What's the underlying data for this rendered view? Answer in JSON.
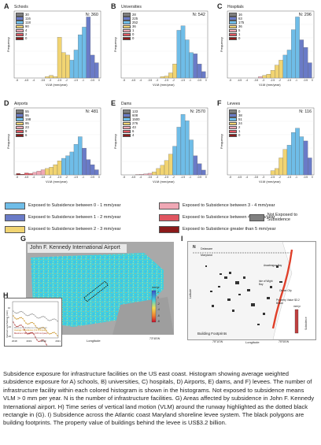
{
  "colors": {
    "c1": "#6a7bc7",
    "c2": "#6fbde8",
    "c3": "#f1d472",
    "c4": "#f0a8b5",
    "c5": "#e05560",
    "c6": "#8b1a1a",
    "c0": "#808080"
  },
  "panels": [
    {
      "letter": "A",
      "title": "Schools",
      "n": "N: 360",
      "counts": [
        "30",
        "116",
        "118",
        "90",
        "4",
        "2",
        "0"
      ]
    },
    {
      "letter": "B",
      "title": "Universities",
      "n": "N: 542",
      "counts": [
        "28",
        "225",
        "252",
        "36",
        "1",
        "0",
        "0"
      ]
    },
    {
      "letter": "C",
      "title": "Hospitals",
      "n": "N: 296",
      "counts": [
        "16",
        "63",
        "175",
        "36",
        "5",
        "1",
        "0"
      ]
    },
    {
      "letter": "D",
      "title": "Airports",
      "n": "N: 481",
      "counts": [
        "55",
        "95",
        "198",
        "95",
        "23",
        "9",
        "6"
      ]
    },
    {
      "letter": "E",
      "title": "Dams",
      "n": "N: 2570",
      "counts": [
        "133",
        "608",
        "1500",
        "276",
        "43",
        "6",
        "4"
      ]
    },
    {
      "letter": "F",
      "title": "Levees",
      "n": "N: 116",
      "counts": [
        "0",
        "38",
        "51",
        "24",
        "2",
        "1",
        "0"
      ]
    }
  ],
  "axes": {
    "ylabel": "Frequency",
    "xlabel": "VLM (mm/year)",
    "xticks": [
      "-5",
      "-4.5",
      "-4",
      "-3.5",
      "-3",
      "-2.5",
      "-2",
      "-1.5",
      "-1",
      "-0.5",
      "0"
    ]
  },
  "chart_data": [
    {
      "type": "bar",
      "panel": "A",
      "title": "Schools",
      "bins_center": [
        -3.25,
        -3.0,
        -2.75,
        -2.5,
        -2.25,
        -2.0,
        -1.75,
        -1.5,
        -1.25,
        -1.0,
        -0.75,
        -0.5,
        -0.25
      ],
      "values": [
        1,
        2,
        1,
        32,
        20,
        18,
        14,
        22,
        34,
        40,
        48,
        18,
        12
      ],
      "class": [
        3,
        3,
        3,
        3,
        3,
        3,
        2,
        2,
        2,
        2,
        1,
        1,
        1
      ],
      "ylim": [
        0,
        50
      ]
    },
    {
      "type": "bar",
      "panel": "B",
      "title": "Universities",
      "bins_center": [
        -2.75,
        -2.5,
        -2.25,
        -2.0,
        -1.75,
        -1.5,
        -1.25,
        -1.0,
        -0.75,
        -0.5,
        -0.25
      ],
      "values": [
        2,
        3,
        8,
        22,
        75,
        82,
        60,
        40,
        38,
        22,
        10
      ],
      "class": [
        3,
        3,
        3,
        3,
        2,
        2,
        2,
        2,
        1,
        1,
        1
      ],
      "ylim": [
        0,
        100
      ]
    },
    {
      "type": "bar",
      "panel": "C",
      "title": "Hospitals",
      "bins_center": [
        -3.25,
        -3.0,
        -2.75,
        -2.5,
        -2.25,
        -2.0,
        -1.75,
        -1.5,
        -1.25,
        -1.0,
        -0.75,
        -0.5,
        -0.25
      ],
      "values": [
        1,
        2,
        3,
        6,
        10,
        14,
        18,
        22,
        38,
        48,
        30,
        24,
        12
      ],
      "class": [
        4,
        3,
        3,
        3,
        3,
        3,
        2,
        2,
        2,
        2,
        1,
        1,
        1
      ],
      "ylim": [
        0,
        50
      ]
    },
    {
      "type": "bar",
      "panel": "D",
      "title": "Airports",
      "bins_center": [
        -5.0,
        -4.75,
        -4.5,
        -4.25,
        -4.0,
        -3.75,
        -3.5,
        -3.25,
        -3.0,
        -2.75,
        -2.5,
        -2.25,
        -2.0,
        -1.75,
        -1.5,
        -1.25,
        -1.0,
        -0.75,
        -0.5,
        -0.25
      ],
      "values": [
        2,
        1,
        3,
        2,
        4,
        6,
        8,
        10,
        12,
        16,
        22,
        26,
        30,
        36,
        48,
        60,
        42,
        24,
        16,
        8
      ],
      "class": [
        6,
        6,
        5,
        5,
        4,
        4,
        4,
        3,
        3,
        3,
        3,
        2,
        2,
        2,
        2,
        2,
        1,
        1,
        1,
        1
      ],
      "ylim": [
        0,
        100
      ]
    },
    {
      "type": "bar",
      "panel": "E",
      "title": "Dams",
      "bins_center": [
        -4.25,
        -4.0,
        -3.75,
        -3.5,
        -3.25,
        -3.0,
        -2.75,
        -2.5,
        -2.25,
        -2.0,
        -1.75,
        -1.5,
        -1.25,
        -1.0,
        -0.75,
        -0.5,
        -0.25
      ],
      "values": [
        2,
        4,
        6,
        10,
        18,
        40,
        60,
        90,
        130,
        180,
        300,
        380,
        340,
        220,
        120,
        70,
        30
      ],
      "class": [
        5,
        4,
        4,
        4,
        3,
        3,
        3,
        3,
        3,
        2,
        2,
        2,
        2,
        2,
        1,
        1,
        1
      ],
      "ylim": [
        0,
        400
      ]
    },
    {
      "type": "bar",
      "panel": "F",
      "title": "Levees",
      "bins_center": [
        -2.5,
        -2.25,
        -2.0,
        -1.75,
        -1.5,
        -1.25,
        -1.0,
        -0.75,
        -0.5,
        -0.25
      ],
      "values": [
        2,
        3,
        8,
        12,
        14,
        20,
        22,
        18,
        16,
        8
      ],
      "class": [
        3,
        3,
        3,
        3,
        2,
        2,
        2,
        2,
        1,
        1
      ],
      "ylim": [
        0,
        30
      ]
    }
  ],
  "legend": {
    "items": [
      {
        "key": "c2",
        "label": "Exposed to Subsidence between 0 - 1 mm/year"
      },
      {
        "key": "c4",
        "label": "Exposed to Subsidence between 3 - 4 mm/year"
      },
      {
        "key": "c1",
        "label": "Exposed to Subsidence between 1 - 2 mm/year"
      },
      {
        "key": "c5",
        "label": "Exposed to Subsidence between 4 - 5 mm/year"
      },
      {
        "key": "c0",
        "label": "Not Exposed to Subsidence"
      },
      {
        "key": "c3",
        "label": "Exposed to Subsidence between 2 - 3 mm/year"
      },
      {
        "key": "c6",
        "label": "Exposed to Subsidence greater than 5 mm/year"
      }
    ]
  },
  "figure_g": {
    "letter": "G",
    "title": "John F. Kennedy International Airport",
    "xlabel": "Longitude",
    "cbar_title": "mm/yr",
    "cbar_ticks": [
      "2",
      "0",
      "-2",
      "-4",
      "-6",
      "-8"
    ],
    "lon_tick": "73°45'W"
  },
  "figure_h": {
    "letter": "H",
    "ylabel": "Vertical Land Motion (mm)",
    "xticks": [
      "2018",
      "2019",
      "2020",
      "2021"
    ],
    "yticks": [
      "10",
      "0",
      "-10",
      "-20"
    ],
    "legend": [
      "Minimum Subsidence (0.3 mm/year)",
      "Average Subsidence (1.9 mm/year)",
      "Maximum Subsidence (3.8 mm/year)"
    ]
  },
  "figure_i": {
    "letter": "I",
    "labels": {
      "north": "N",
      "delaware": "Delaware",
      "maryland": "Maryland",
      "assateague": "Assateague Bay",
      "isle": "Isle of Wight Bay",
      "ocean": "Ocean City",
      "property": "Property Value $3.2 Billion",
      "ylabel": "Latitude",
      "xlabel": "Longitude",
      "footprints": "Building Footprints",
      "cbar_title": "mm/yr",
      "cbar_side": "Subsidence",
      "lon1": "75°10'W",
      "lon2": "75°05'W"
    }
  },
  "caption": "Subsidence exposure for infrastructure facilities on the US east coast. Histogram showing average weighted subsidence exposure for A) schools, B) universities, C) hospitals, D) Airports, E) dams, and F) levees. The number of infrastructure facility within each colored histogram is shown in the histograms. Not exposed to subsidence means VLM > 0 mm per year. N is the number of infrastructure facilities. G) Areas affected by subsidence in John F. Kennedy International airport. H) Time series of vertical land motion (VLM) around the runway highlighted as the dotted black rectangle in (G). I) Subsidence across the Atlantic coast Maryland shoreline levee system. The black polygons are building footprints. The property value of buildings behind the levee is US$3.2 billion."
}
